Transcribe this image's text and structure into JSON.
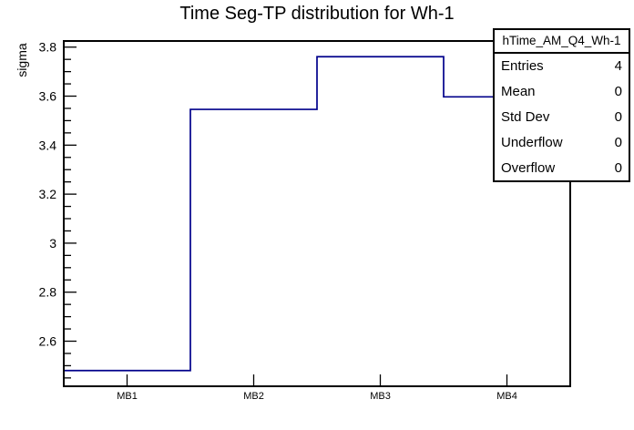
{
  "chart_data": {
    "type": "line",
    "style": "histogram-step",
    "title": "Time Seg-TP distribution for Wh-1",
    "xlabel": "",
    "ylabel": "sigma",
    "categories": [
      "MB1",
      "MB2",
      "MB3",
      "MB4"
    ],
    "values": [
      2.48,
      3.546,
      3.761,
      3.597
    ],
    "ylim": [
      2.416,
      3.825
    ],
    "y_major_ticks": [
      2.6,
      2.8,
      3.0,
      3.2,
      3.4,
      3.6,
      3.8
    ],
    "y_tick_labels": [
      "2.6",
      "2.8",
      "3",
      "3.2",
      "3.4",
      "3.6",
      "3.8"
    ],
    "y_minor_step": 0.05,
    "grid": false,
    "legend_position": "none",
    "line_color": "#00008b",
    "frame_color": "#000000",
    "background_color": "#ffffff"
  },
  "stats_box": {
    "header": "hTime_AM_Q4_Wh-1",
    "rows": [
      {
        "label": "Entries",
        "value": "4"
      },
      {
        "label": "Mean",
        "value": "0"
      },
      {
        "label": "Std Dev",
        "value": "0"
      },
      {
        "label": "Underflow",
        "value": "0"
      },
      {
        "label": "Overflow",
        "value": "0"
      }
    ]
  }
}
